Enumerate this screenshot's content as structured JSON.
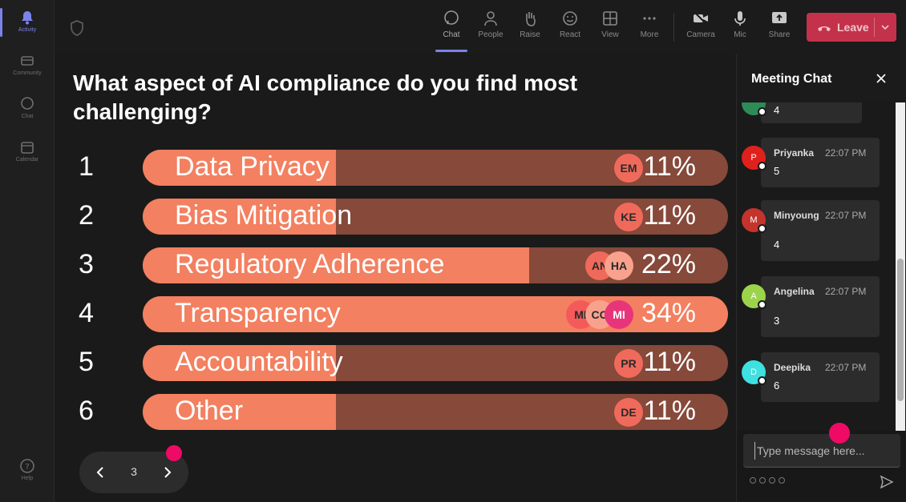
{
  "rail": {
    "items": [
      {
        "label": "Activity",
        "icon": "bell-icon"
      },
      {
        "label": "Community",
        "icon": "community-icon"
      },
      {
        "label": "Chat",
        "icon": "chat-icon"
      },
      {
        "label": "Calendar",
        "icon": "calendar-icon"
      },
      {
        "label": "Help",
        "icon": "help-icon"
      }
    ]
  },
  "toolbar": {
    "chat": "Chat",
    "people": "People",
    "raise": "Raise",
    "react": "React",
    "view": "View",
    "more": "More",
    "camera": "Camera",
    "mic": "Mic",
    "share": "Share",
    "leave": "Leave"
  },
  "poll": {
    "question": "What aspect of AI compliance do you find most challenging?",
    "options": [
      {
        "num": "1",
        "label": "Data Privacy",
        "pct": "11%",
        "fraction": 0.11,
        "voters": [
          "EM"
        ]
      },
      {
        "num": "2",
        "label": "Bias Mitigation",
        "pct": "11%",
        "fraction": 0.11,
        "voters": [
          "KE"
        ]
      },
      {
        "num": "3",
        "label": "Regulatory Adherence",
        "pct": "22%",
        "fraction": 0.22,
        "voters": [
          "AN",
          "HA"
        ]
      },
      {
        "num": "4",
        "label": "Transparency",
        "pct": "34%",
        "fraction": 0.34,
        "voters": [
          "MI",
          "CO",
          "MI"
        ]
      },
      {
        "num": "5",
        "label": "Accountability",
        "pct": "11%",
        "fraction": 0.11,
        "voters": [
          "PR"
        ]
      },
      {
        "num": "6",
        "label": "Other",
        "pct": "11%",
        "fraction": 0.11,
        "voters": [
          "DE"
        ]
      }
    ],
    "page": "3"
  },
  "chat": {
    "title": "Meeting Chat",
    "messages": [
      {
        "initial": "",
        "name": "",
        "time": "",
        "text": "4",
        "color": "#2e8b57"
      },
      {
        "initial": "P",
        "name": "Priyanka",
        "time": "22:07 PM",
        "text": "5",
        "color": "#e0201c"
      },
      {
        "initial": "M",
        "name": "Minyoung",
        "time": "22:07 PM",
        "text": "4",
        "color": "#c4342c"
      },
      {
        "initial": "A",
        "name": "Angelina",
        "time": "22:07 PM",
        "text": "3",
        "color": "#9bd44b"
      },
      {
        "initial": "D",
        "name": "Deepika",
        "time": "22:07 PM",
        "text": "6",
        "color": "#3fe0e0"
      }
    ],
    "placeholder": "Type message here..."
  },
  "colors": {
    "bar_track": "#86493a",
    "bar_fill": "#f38060",
    "leave": "#c4314b",
    "accent": "#7b83eb",
    "pointer_dot": "#ef0a66"
  }
}
